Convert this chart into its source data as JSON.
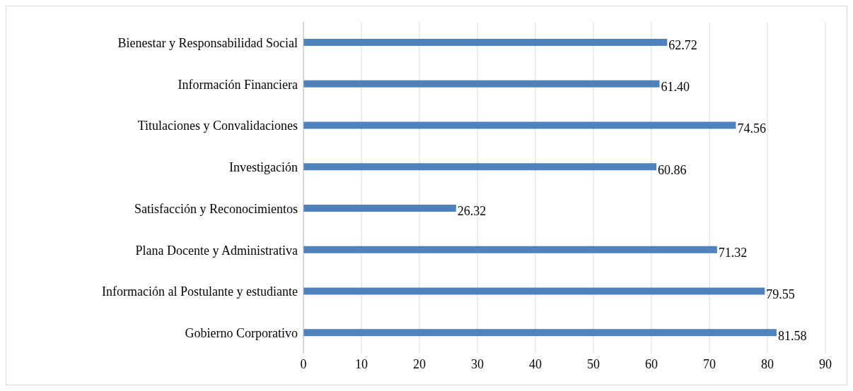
{
  "chart_data": {
    "type": "bar",
    "orientation": "horizontal",
    "categories": [
      "Bienestar y Responsabilidad Social",
      "Información Financiera",
      "Titulaciones y Convalidaciones",
      "Investigación",
      "Satisfacción y Reconocimientos",
      "Plana Docente y Administrativa",
      "Información al Postulante y estudiante",
      "Gobierno Corporativo"
    ],
    "values": [
      62.72,
      61.4,
      74.56,
      60.86,
      26.32,
      71.32,
      79.55,
      81.58
    ],
    "value_labels": [
      "62.72",
      "61.40",
      "74.56",
      "60.86",
      "26.32",
      "71.32",
      "79.55",
      "81.58"
    ],
    "color": "#4f81bd",
    "xlim": [
      0,
      90
    ],
    "xticks": [
      0,
      10,
      20,
      30,
      40,
      50,
      60,
      70,
      80,
      90
    ],
    "grid": "x"
  }
}
